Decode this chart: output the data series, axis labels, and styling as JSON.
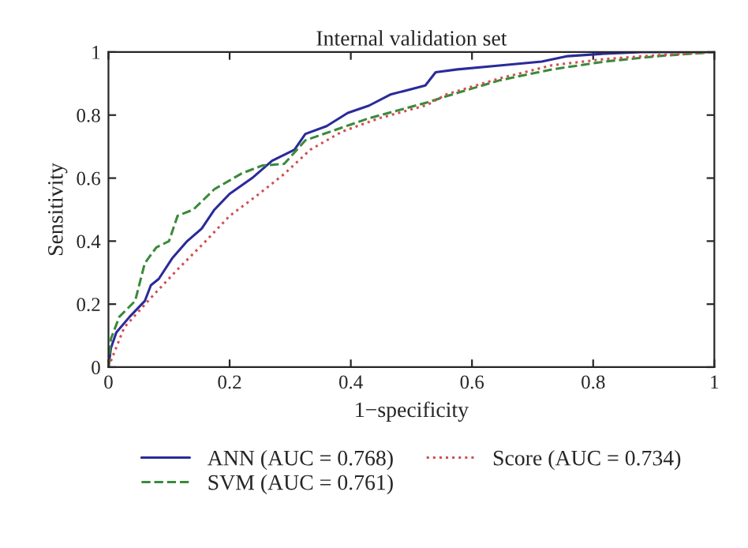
{
  "chart_data": {
    "type": "line",
    "title": "Internal validation set",
    "xlabel": "1−specificity",
    "ylabel": "Sensitivity",
    "xlim": [
      0,
      1
    ],
    "ylim": [
      0,
      1
    ],
    "xticks": [
      0,
      0.2,
      0.4,
      0.6,
      0.8,
      1
    ],
    "yticks": [
      0,
      0.2,
      0.4,
      0.6,
      0.8,
      1
    ],
    "grid": false,
    "legend": "bottom",
    "series": [
      {
        "name": "ANN (AUC = 0.768)",
        "color": "#2b2b9a",
        "line_style": "solid",
        "x": [
          0,
          0.004,
          0.013,
          0.035,
          0.06,
          0.07,
          0.083,
          0.105,
          0.13,
          0.154,
          0.175,
          0.2,
          0.237,
          0.27,
          0.307,
          0.325,
          0.36,
          0.395,
          0.43,
          0.465,
          0.523,
          0.54,
          0.576,
          0.645,
          0.715,
          0.758,
          0.82,
          0.88,
          1
        ],
        "values": [
          0,
          0.06,
          0.11,
          0.16,
          0.21,
          0.26,
          0.28,
          0.345,
          0.4,
          0.44,
          0.5,
          0.55,
          0.6,
          0.655,
          0.69,
          0.74,
          0.765,
          0.807,
          0.83,
          0.865,
          0.894,
          0.936,
          0.945,
          0.957,
          0.97,
          0.987,
          0.995,
          1,
          1
        ]
      },
      {
        "name": "SVM (AUC = 0.761)",
        "color": "#3a8a3a",
        "line_style": "dashed",
        "x": [
          0,
          0.004,
          0.018,
          0.044,
          0.06,
          0.079,
          0.1,
          0.114,
          0.14,
          0.175,
          0.22,
          0.254,
          0.29,
          0.325,
          0.37,
          0.43,
          0.526,
          0.558,
          0.645,
          0.732,
          0.82,
          0.906,
          1
        ],
        "values": [
          0,
          0.09,
          0.16,
          0.21,
          0.33,
          0.38,
          0.4,
          0.48,
          0.5,
          0.565,
          0.615,
          0.64,
          0.645,
          0.72,
          0.75,
          0.79,
          0.84,
          0.86,
          0.91,
          0.945,
          0.97,
          0.987,
          1
        ]
      },
      {
        "name": "Score (AUC = 0.734)",
        "color": "#d05050",
        "line_style": "dotted",
        "x": [
          0,
          0.026,
          0.07,
          0.114,
          0.158,
          0.2,
          0.246,
          0.29,
          0.333,
          0.386,
          0.447,
          0.526,
          0.558,
          0.645,
          0.732,
          0.82,
          0.906,
          1
        ],
        "values": [
          0,
          0.126,
          0.22,
          0.31,
          0.395,
          0.48,
          0.546,
          0.613,
          0.69,
          0.748,
          0.79,
          0.832,
          0.866,
          0.916,
          0.958,
          0.978,
          0.99,
          1
        ]
      }
    ]
  }
}
